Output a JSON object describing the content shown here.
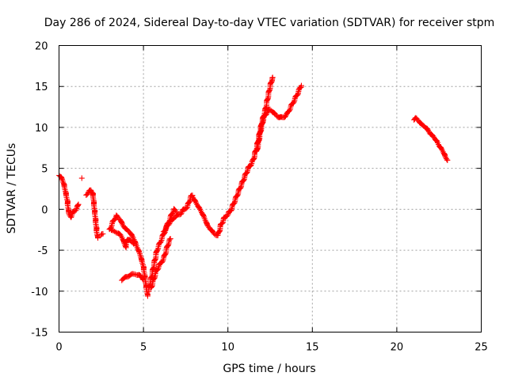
{
  "chart_data": {
    "type": "scatter",
    "title": "Day 286 of 2024, Sidereal Day-to-day VTEC variation (SDTVAR) for receiver stpm",
    "xlabel": "GPS time / hours",
    "ylabel": "SDTVAR / TECUs",
    "xlim": [
      0,
      25
    ],
    "ylim": [
      -15,
      20
    ],
    "xticks": [
      0,
      5,
      10,
      15,
      20,
      25
    ],
    "yticks": [
      -15,
      -10,
      -5,
      0,
      5,
      10,
      15,
      20
    ],
    "xtick_labels": [
      "0",
      "5",
      "10",
      "15",
      "20",
      "25"
    ],
    "ytick_labels": [
      "-15",
      "-10",
      "-5",
      "0",
      "5",
      "10",
      "15",
      "20"
    ],
    "grid": true,
    "marker": "+",
    "color": "#ff0000",
    "series": [
      {
        "name": "SDTVAR",
        "segments": [
          [
            [
              0.0,
              4.2
            ],
            [
              0.1,
              4.0
            ],
            [
              0.2,
              3.6
            ],
            [
              0.3,
              3.0
            ],
            [
              0.4,
              2.0
            ],
            [
              0.5,
              1.0
            ],
            [
              0.55,
              0.0
            ],
            [
              0.6,
              -0.6
            ],
            [
              0.7,
              -0.9
            ],
            [
              0.8,
              -0.5
            ],
            [
              0.9,
              -0.2
            ],
            [
              1.0,
              0.0
            ],
            [
              1.1,
              0.3
            ],
            [
              1.15,
              0.6
            ]
          ],
          [
            [
              1.35,
              3.8
            ]
          ],
          [
            [
              1.6,
              1.8
            ],
            [
              1.7,
              2.0
            ],
            [
              1.8,
              2.2
            ],
            [
              1.9,
              2.3
            ],
            [
              2.0,
              2.0
            ],
            [
              2.05,
              1.0
            ],
            [
              2.1,
              0.0
            ],
            [
              2.15,
              -1.0
            ],
            [
              2.2,
              -2.0
            ],
            [
              2.25,
              -3.0
            ],
            [
              2.3,
              -3.5
            ]
          ],
          [
            [
              2.5,
              -3.2
            ],
            [
              2.6,
              -3.0
            ]
          ],
          [
            [
              3.0,
              -2.5
            ],
            [
              3.2,
              -1.5
            ],
            [
              3.4,
              -0.8
            ],
            [
              3.6,
              -1.2
            ],
            [
              3.8,
              -2.0
            ],
            [
              4.0,
              -2.5
            ],
            [
              4.2,
              -2.8
            ],
            [
              4.4,
              -3.5
            ],
            [
              4.6,
              -4.5
            ],
            [
              4.8,
              -5.5
            ],
            [
              5.0,
              -7.0
            ],
            [
              5.1,
              -8.5
            ],
            [
              5.2,
              -10.0
            ],
            [
              5.25,
              -10.6
            ]
          ],
          [
            [
              3.1,
              -2.6
            ],
            [
              3.3,
              -2.7
            ],
            [
              3.5,
              -2.9
            ],
            [
              3.7,
              -3.3
            ],
            [
              3.85,
              -4.0
            ],
            [
              3.95,
              -4.6
            ],
            [
              4.05,
              -3.6
            ],
            [
              4.25,
              -3.9
            ],
            [
              4.45,
              -4.2
            ]
          ],
          [
            [
              3.7,
              -8.6
            ],
            [
              3.9,
              -8.4
            ],
            [
              4.1,
              -8.1
            ],
            [
              4.3,
              -8.0
            ],
            [
              4.5,
              -7.9
            ],
            [
              4.7,
              -8.0
            ],
            [
              4.85,
              -8.2
            ],
            [
              5.0,
              -8.6
            ]
          ],
          [
            [
              5.3,
              -10.0
            ],
            [
              5.4,
              -9.0
            ],
            [
              5.5,
              -8.0
            ],
            [
              5.6,
              -7.0
            ],
            [
              5.7,
              -6.0
            ],
            [
              5.8,
              -5.0
            ],
            [
              6.0,
              -4.0
            ],
            [
              6.2,
              -3.0
            ],
            [
              6.4,
              -2.0
            ],
            [
              6.6,
              -1.5
            ],
            [
              6.8,
              -1.0
            ],
            [
              7.0,
              -0.8
            ],
            [
              7.2,
              -0.5
            ],
            [
              7.4,
              0.0
            ],
            [
              7.6,
              0.3
            ],
            [
              7.8,
              1.5
            ],
            [
              7.9,
              1.7
            ]
          ],
          [
            [
              5.45,
              -9.6
            ],
            [
              5.6,
              -8.6
            ],
            [
              5.75,
              -7.6
            ],
            [
              5.9,
              -7.0
            ],
            [
              6.05,
              -6.5
            ],
            [
              6.2,
              -6.0
            ],
            [
              6.35,
              -5.0
            ],
            [
              6.5,
              -4.0
            ],
            [
              6.6,
              -3.6
            ]
          ],
          [
            [
              6.2,
              -2.8
            ],
            [
              6.4,
              -2.0
            ],
            [
              6.6,
              -1.0
            ],
            [
              6.8,
              0.0
            ],
            [
              6.95,
              -0.3
            ]
          ],
          [
            [
              7.9,
              1.6
            ],
            [
              8.0,
              1.2
            ],
            [
              8.2,
              0.5
            ],
            [
              8.4,
              -0.2
            ],
            [
              8.6,
              -1.0
            ],
            [
              8.8,
              -2.0
            ],
            [
              9.0,
              -2.5
            ],
            [
              9.2,
              -3.0
            ],
            [
              9.4,
              -3.2
            ],
            [
              9.5,
              -2.6
            ],
            [
              9.6,
              -1.8
            ],
            [
              9.7,
              -1.5
            ],
            [
              9.8,
              -1.0
            ],
            [
              9.9,
              -0.8
            ],
            [
              10.0,
              -0.6
            ],
            [
              10.1,
              -0.3
            ],
            [
              10.2,
              0.0
            ],
            [
              10.3,
              0.5
            ],
            [
              10.4,
              1.0
            ],
            [
              10.5,
              1.5
            ],
            [
              10.6,
              2.0
            ],
            [
              10.7,
              2.5
            ],
            [
              10.8,
              3.0
            ],
            [
              10.9,
              3.5
            ],
            [
              11.0,
              4.0
            ],
            [
              11.1,
              4.5
            ],
            [
              11.2,
              5.0
            ],
            [
              11.3,
              5.3
            ],
            [
              11.4,
              5.6
            ],
            [
              11.5,
              6.0
            ],
            [
              11.6,
              6.8
            ],
            [
              11.7,
              7.5
            ],
            [
              11.8,
              8.5
            ],
            [
              11.9,
              9.5
            ],
            [
              12.0,
              10.5
            ],
            [
              12.1,
              11.3
            ],
            [
              12.2,
              12.0
            ],
            [
              12.3,
              13.0
            ],
            [
              12.4,
              14.0
            ],
            [
              12.5,
              15.0
            ],
            [
              12.6,
              15.8
            ],
            [
              12.65,
              16.1
            ]
          ],
          [
            [
              11.7,
              7.0
            ],
            [
              11.8,
              8.0
            ],
            [
              11.9,
              9.2
            ],
            [
              12.0,
              10.2
            ],
            [
              12.1,
              11.0
            ],
            [
              12.2,
              11.5
            ],
            [
              12.3,
              11.8
            ],
            [
              12.4,
              12.0
            ],
            [
              12.5,
              12.2
            ],
            [
              12.6,
              12.0
            ],
            [
              12.7,
              11.8
            ],
            [
              12.8,
              11.6
            ],
            [
              12.9,
              11.4
            ],
            [
              13.0,
              11.3
            ],
            [
              13.1,
              11.2
            ],
            [
              13.2,
              11.2
            ],
            [
              13.3,
              11.3
            ],
            [
              13.4,
              11.4
            ],
            [
              13.5,
              11.6
            ],
            [
              13.6,
              12.0
            ],
            [
              13.7,
              12.4
            ],
            [
              13.8,
              12.8
            ],
            [
              13.9,
              13.2
            ],
            [
              14.0,
              13.6
            ],
            [
              14.1,
              14.0
            ],
            [
              14.2,
              14.5
            ],
            [
              14.3,
              14.9
            ],
            [
              14.35,
              15.1
            ]
          ],
          [
            [
              21.0,
              11.0
            ],
            [
              21.1,
              11.1
            ],
            [
              21.2,
              11.0
            ],
            [
              21.3,
              10.8
            ],
            [
              21.4,
              10.5
            ],
            [
              21.5,
              10.3
            ],
            [
              21.6,
              10.2
            ],
            [
              21.7,
              10.0
            ],
            [
              21.8,
              9.8
            ],
            [
              21.9,
              9.5
            ],
            [
              22.0,
              9.2
            ],
            [
              22.1,
              9.0
            ],
            [
              22.2,
              8.8
            ],
            [
              22.3,
              8.5
            ],
            [
              22.4,
              8.2
            ],
            [
              22.5,
              7.8
            ],
            [
              22.6,
              7.5
            ],
            [
              22.7,
              7.2
            ],
            [
              22.8,
              6.8
            ],
            [
              22.9,
              6.3
            ],
            [
              23.0,
              6.0
            ]
          ]
        ]
      }
    ]
  }
}
